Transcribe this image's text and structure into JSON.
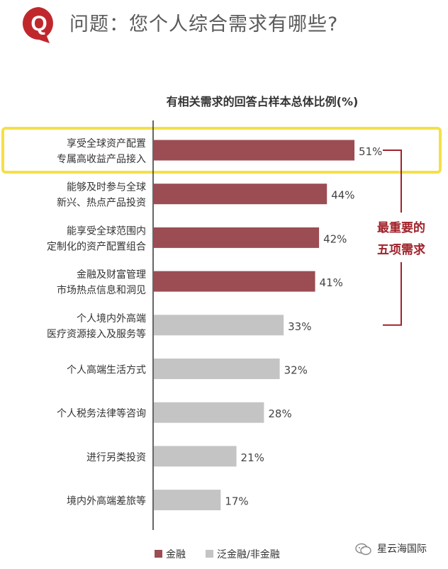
{
  "header": {
    "badge_letter": "Q",
    "title": "问题：您个人综合需求有哪些?"
  },
  "chart_data": {
    "type": "bar",
    "orientation": "horizontal",
    "title": "有相关需求的回答占样本总体比例(%)",
    "categories": [
      [
        "享受全球资产配置",
        "专属高收益产品接入"
      ],
      [
        "能够及时参与全球",
        "新兴、热点产品投资"
      ],
      [
        "能享受全球范围内",
        "定制化的资产配置组合"
      ],
      [
        "金融及财富管理",
        "市场热点信息和洞见"
      ],
      [
        "个人境内外高端",
        "医疗资源接入及服务等"
      ],
      [
        "个人高端生活方式"
      ],
      [
        "个人税务法律等咨询"
      ],
      [
        "进行另类投资"
      ],
      [
        "境内外高端差旅等"
      ]
    ],
    "values": [
      51,
      44,
      42,
      41,
      33,
      32,
      28,
      21,
      17
    ],
    "value_labels": [
      "51%",
      "44%",
      "42%",
      "41%",
      "33%",
      "32%",
      "28%",
      "21%",
      "17%"
    ],
    "groups": [
      "finance",
      "finance",
      "finance",
      "finance",
      "non",
      "non",
      "non",
      "non",
      "non"
    ],
    "colors": {
      "finance": "#9b4d53",
      "non": "#c4c4c4",
      "highlight": "#f5e046",
      "bracket": "#a0222a"
    },
    "highlight_index": 0,
    "annotation": {
      "line1": "最重要的",
      "line2": "五项需求",
      "spans": [
        0,
        4
      ]
    },
    "legend": [
      {
        "key": "finance",
        "label": "金融"
      },
      {
        "key": "non",
        "label": "泛金融/非金融"
      }
    ],
    "legend_placement": "bottom-left"
  },
  "watermark": {
    "text": "星云海国际"
  },
  "colors": {
    "badge": "#c0272d",
    "title_text": "#5a5a5a"
  }
}
